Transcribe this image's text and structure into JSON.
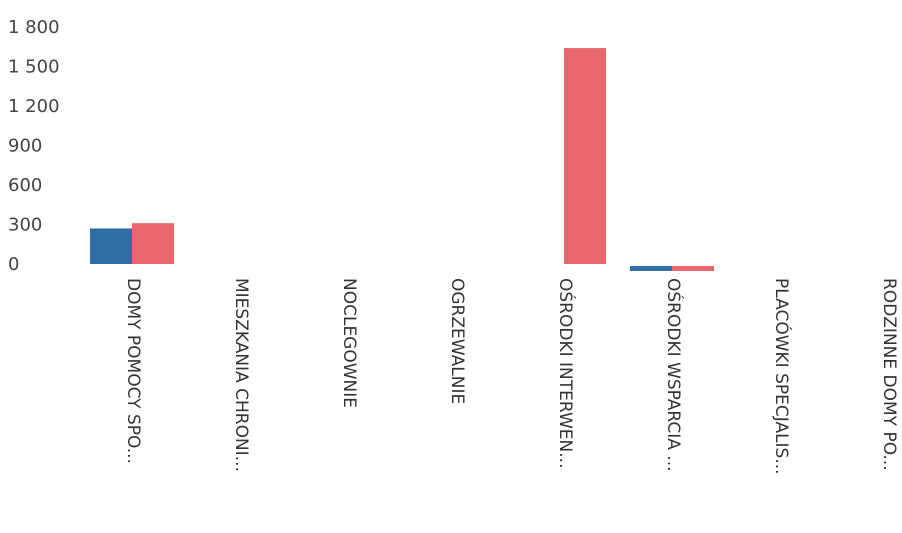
{
  "chart_data": {
    "type": "bar",
    "title": "",
    "xlabel": "",
    "ylabel": "",
    "ylim": [
      0,
      1800
    ],
    "yticks": [
      {
        "value": 0,
        "label": "0"
      },
      {
        "value": 300,
        "label": "300"
      },
      {
        "value": 600,
        "label": "600"
      },
      {
        "value": 900,
        "label": "900"
      },
      {
        "value": 1200,
        "label": "1 200"
      },
      {
        "value": 1500,
        "label": "1 500"
      },
      {
        "value": 1800,
        "label": "1 800"
      }
    ],
    "grid": false,
    "legend": "none",
    "categories": [
      "DOMY POMOCY SPO...",
      "MIESZKANIA CHRONI...",
      "NOCLEGOWNIE",
      "OGRZEWALNIE",
      "OŚRODKI INTERWEN...",
      "OŚRODKI WSPARCIA ...",
      "PLACÓWKI SPECJALIS...",
      "RODZINNE DOMY PO..."
    ],
    "series": [
      {
        "color": "#2f6fa8",
        "values": [
          270,
          0,
          0,
          0,
          0,
          -30,
          0,
          0
        ]
      },
      {
        "color": "#e8676f",
        "values": [
          310,
          0,
          0,
          0,
          1640,
          -30,
          0,
          0
        ]
      }
    ]
  }
}
